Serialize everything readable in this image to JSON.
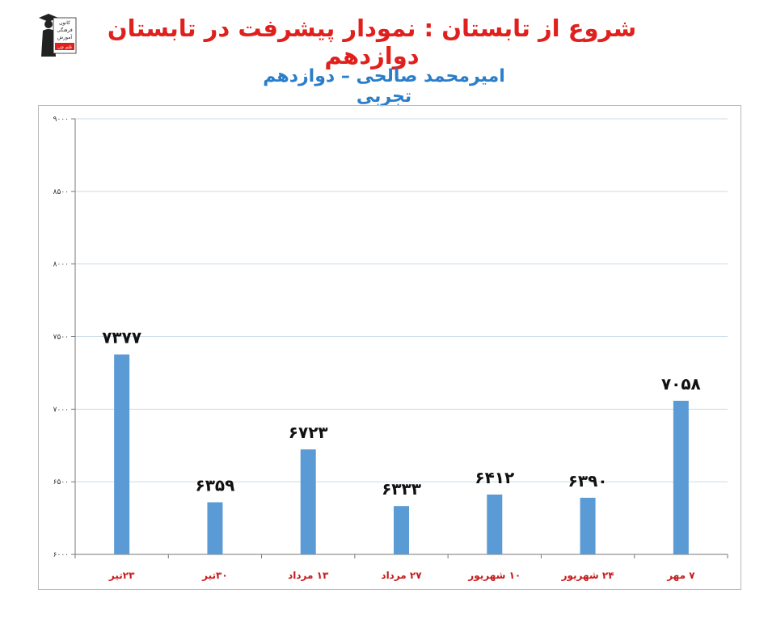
{
  "header": {
    "title": "شروع از تابستان : نمودار پیشرفت در تابستان دوازدهم",
    "subtitle": "امیرمحمد صالحی – دوازدهم تجربی",
    "logo_text": [
      "کانون",
      "فرهنگی",
      "آموزش",
      "قلم چی"
    ]
  },
  "colors": {
    "title": "#e0201c",
    "subtitle": "#2a7ec9",
    "bar": "#5b9bd5",
    "category_label": "#c61a1a",
    "grid": "#c9dbe9"
  },
  "chart_data": {
    "type": "bar",
    "title": "",
    "xlabel": "",
    "ylabel": "",
    "categories": [
      "۲۳تیر",
      "۳۰تیر",
      "۱۳ مرداد",
      "۲۷ مرداد",
      "۱۰ شهریور",
      "۲۴ شهریور",
      "۷ مهر"
    ],
    "values": [
      7377,
      6359,
      6723,
      6333,
      6412,
      6390,
      7058
    ],
    "value_labels": [
      "۷۳۷۷",
      "۶۳۵۹",
      "۶۷۲۳",
      "۶۳۳۳",
      "۶۴۱۲",
      "۶۳۹۰",
      "۷۰۵۸"
    ],
    "ylim": [
      6000,
      9000
    ],
    "yticks": [
      6000,
      6500,
      7000,
      7500,
      8000,
      8500,
      9000
    ],
    "ytick_labels": [
      "۶۰۰۰",
      "۶۵۰۰",
      "۷۰۰۰",
      "۷۵۰۰",
      "۸۰۰۰",
      "۸۵۰۰",
      "۹۰۰۰"
    ],
    "grid": true,
    "legend": "none"
  }
}
